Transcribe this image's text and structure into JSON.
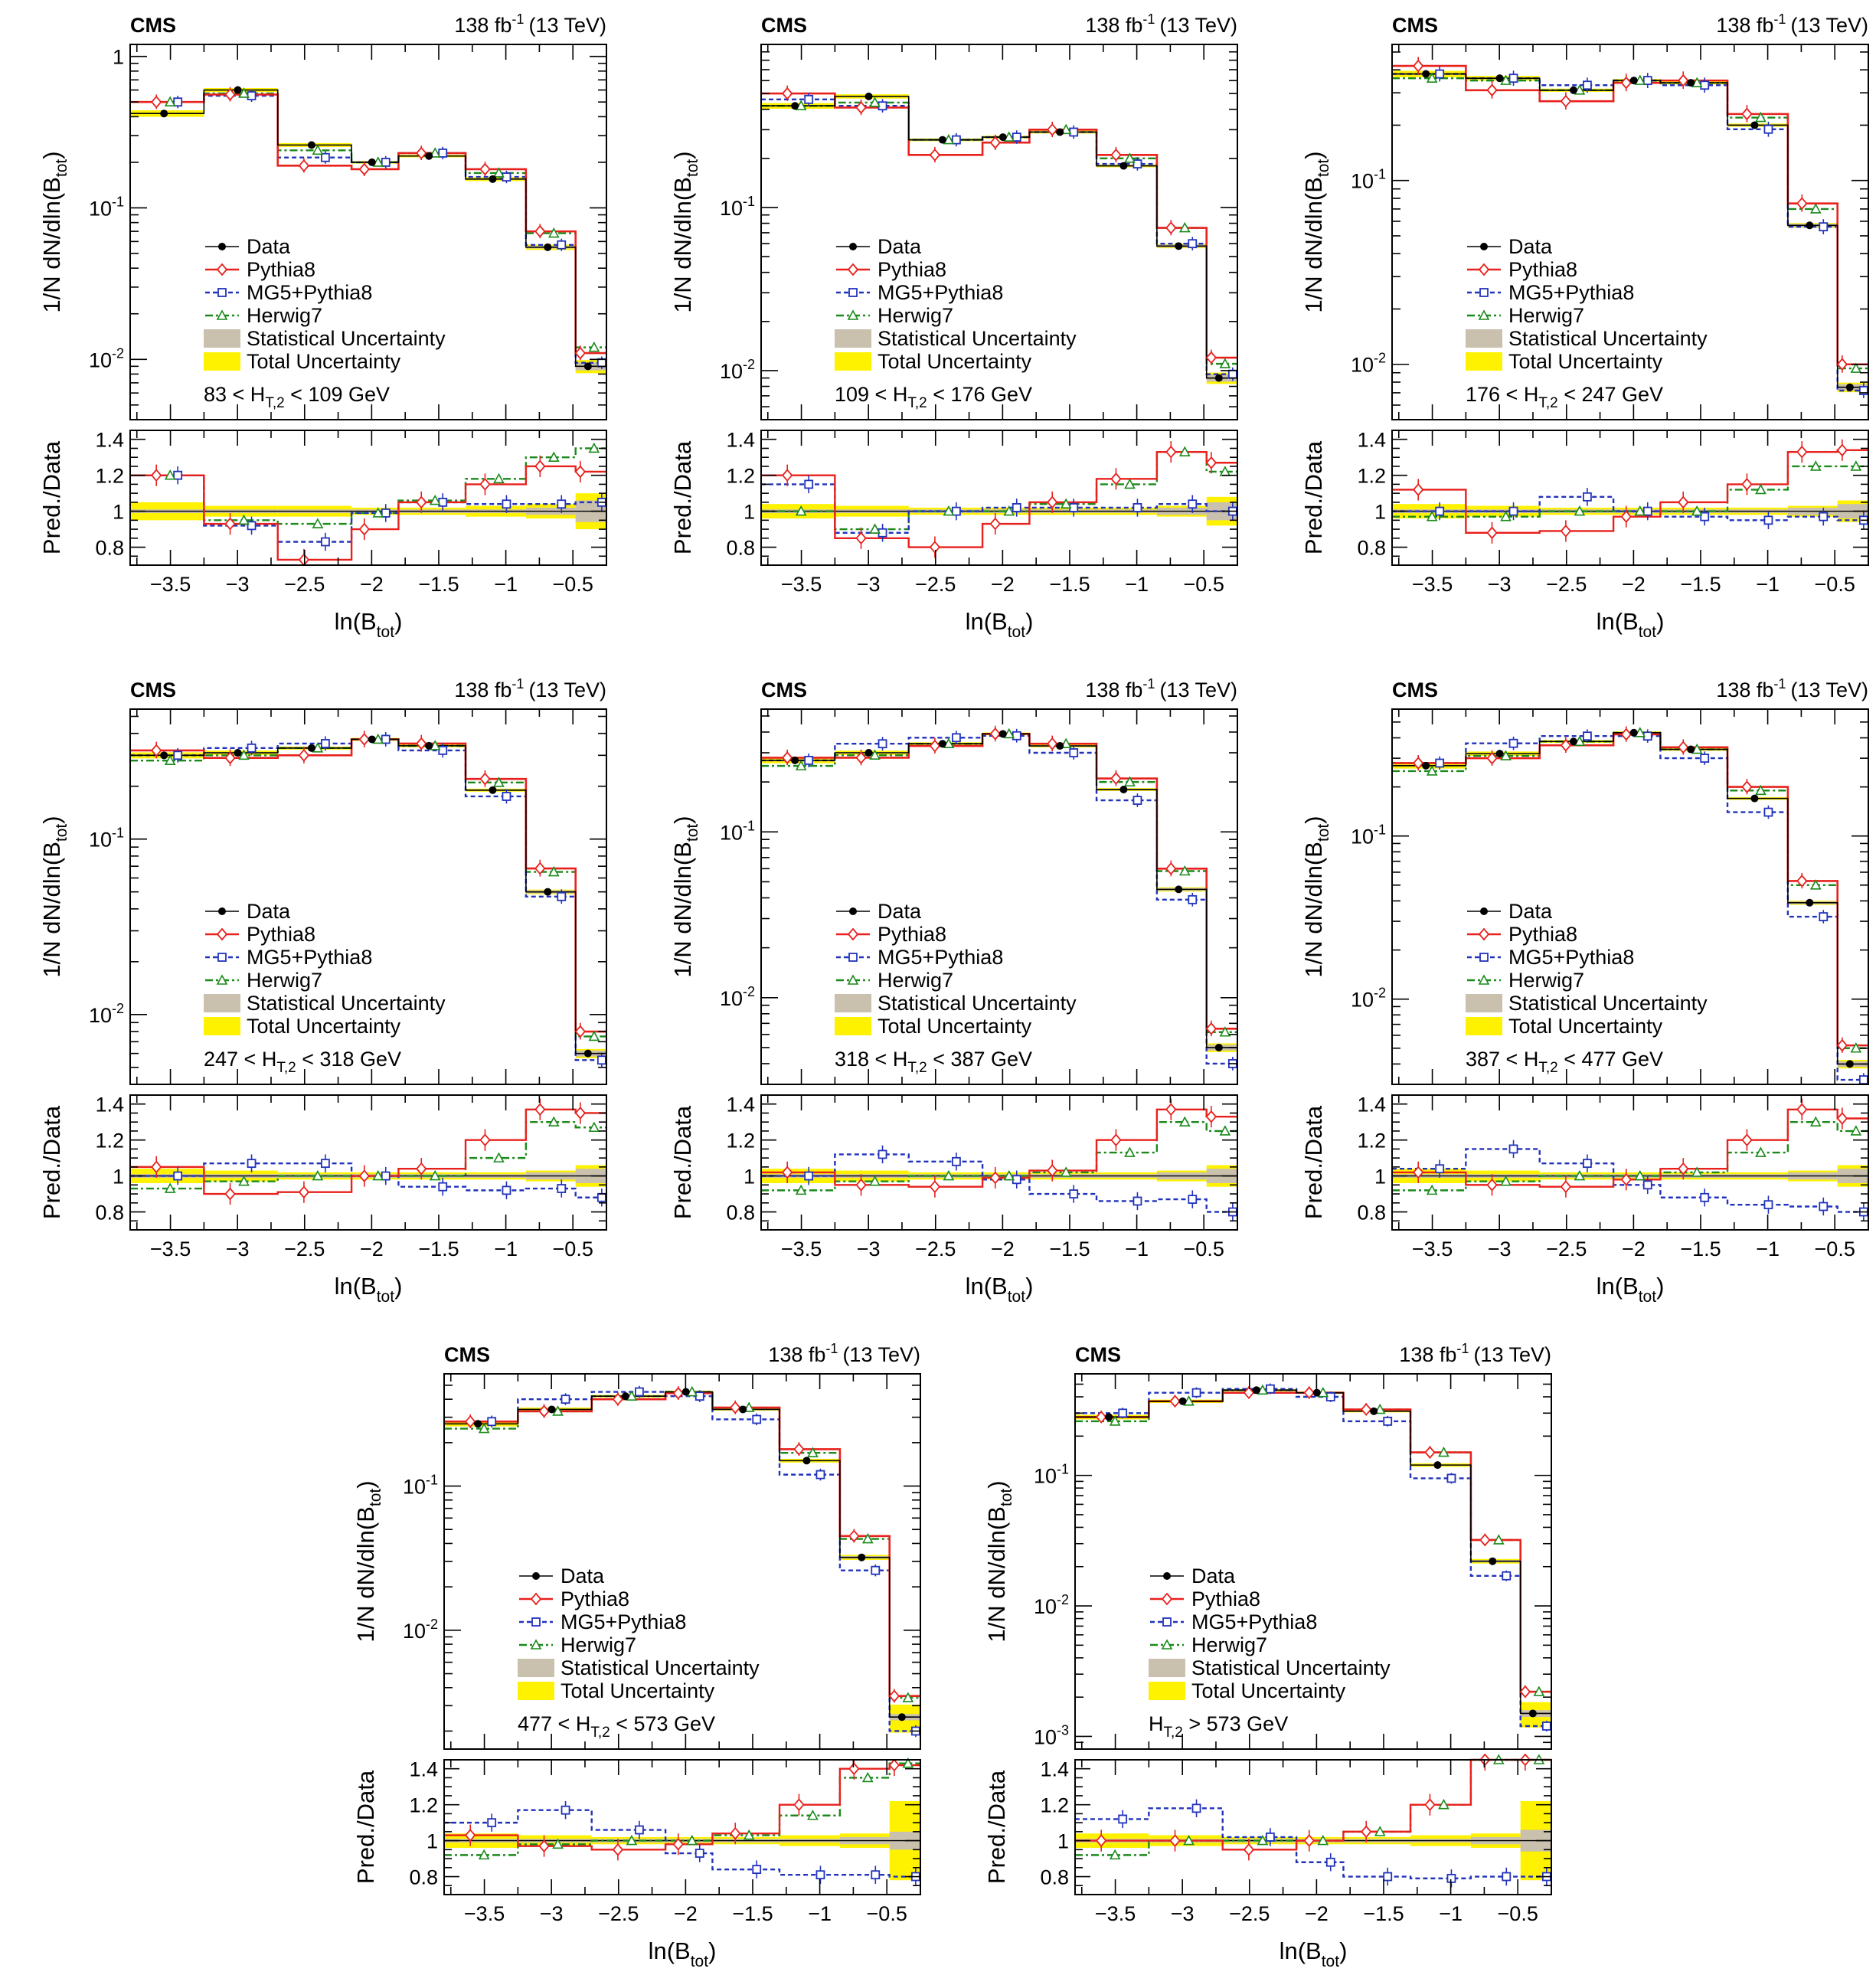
{
  "header": {
    "experiment": "CMS",
    "lumi_value": "138 fb",
    "lumi_exponent": "-1",
    "energy": "(13 TeV)"
  },
  "axes": {
    "xlabel_main": "ln(B",
    "xlabel_sub": "tot",
    "xlabel_close": ")",
    "ylabel_main": "1/N dN/dln(B",
    "ylabel_sub": "tot",
    "ylabel_close": ")",
    "ratio_ylabel": "Pred./Data",
    "x_ticks": [
      "−3.5",
      "−3",
      "−2.5",
      "−2",
      "−1.5",
      "−1",
      "−0.5"
    ],
    "ratio_ticks": [
      "1.4",
      "1.2",
      "1",
      "0.8"
    ]
  },
  "legend": {
    "entries": [
      "Data",
      "Pythia8",
      "MG5+Pythia8",
      "Herwig7",
      "Statistical Uncertainty",
      "Total Uncertainty"
    ]
  },
  "colors": {
    "data": "#000000",
    "pythia8": "#e8211d",
    "mg5": "#2233bb",
    "herwig7": "#1a8a1a",
    "stat_band": "#c9c0ad",
    "total_band": "#fff200"
  },
  "chart_data": {
    "type": "line",
    "bin_edges": [
      -3.8,
      -3.25,
      -2.7,
      -2.15,
      -1.8,
      -1.3,
      -0.85,
      -0.48,
      -0.25
    ],
    "xlim": [
      -3.8,
      -0.25
    ],
    "ratio_ylim": [
      0.7,
      1.45
    ],
    "panels": [
      {
        "label_pre": "83 < H",
        "label_sub": "T,2",
        "label_post": " < 109 GeV",
        "ylim": [
          0.004,
          1.2
        ],
        "decades": [
          {
            "v": 1,
            "t": "1"
          },
          {
            "v": 0.1,
            "t": "10",
            "e": "-1"
          },
          {
            "v": 0.01,
            "t": "10",
            "e": "-2"
          }
        ],
        "data": [
          0.42,
          0.6,
          0.26,
          0.2,
          0.22,
          0.155,
          0.055,
          0.009
        ],
        "pythia8": [
          0.5,
          0.56,
          0.19,
          0.18,
          0.23,
          0.18,
          0.07,
          0.011
        ],
        "mg5": [
          0.5,
          0.55,
          0.215,
          0.2,
          0.23,
          0.16,
          0.057,
          0.0095
        ],
        "herwig7": [
          0.5,
          0.57,
          0.24,
          0.2,
          0.23,
          0.17,
          0.068,
          0.012
        ],
        "stat": [
          0.01,
          0.01,
          0.01,
          0.01,
          0.01,
          0.01,
          0.02,
          0.06
        ],
        "total": [
          0.05,
          0.03,
          0.03,
          0.02,
          0.02,
          0.03,
          0.04,
          0.1
        ],
        "r_pythia8": [
          1.2,
          0.93,
          0.73,
          0.9,
          1.05,
          1.15,
          1.25,
          1.22
        ],
        "r_mg5": [
          1.2,
          0.92,
          0.83,
          0.99,
          1.05,
          1.04,
          1.04,
          1.05
        ],
        "r_herwig7": [
          1.2,
          0.95,
          0.93,
          0.99,
          1.06,
          1.18,
          1.3,
          1.35
        ]
      },
      {
        "label_pre": "109 < H",
        "label_sub": "T,2",
        "label_post": " < 176 GeV",
        "ylim": [
          0.005,
          1.0
        ],
        "decades": [
          {
            "v": 0.1,
            "t": "10",
            "e": "-1"
          },
          {
            "v": 0.01,
            "t": "10",
            "e": "-2"
          }
        ],
        "data": [
          0.42,
          0.48,
          0.26,
          0.27,
          0.29,
          0.18,
          0.058,
          0.009
        ],
        "pythia8": [
          0.5,
          0.41,
          0.21,
          0.25,
          0.3,
          0.21,
          0.075,
          0.012
        ],
        "mg5": [
          0.46,
          0.42,
          0.26,
          0.27,
          0.29,
          0.185,
          0.06,
          0.0095
        ],
        "herwig7": [
          0.42,
          0.44,
          0.26,
          0.27,
          0.3,
          0.2,
          0.075,
          0.011
        ],
        "stat": [
          0.01,
          0.01,
          0.01,
          0.01,
          0.01,
          0.01,
          0.02,
          0.05
        ],
        "total": [
          0.04,
          0.03,
          0.02,
          0.02,
          0.02,
          0.02,
          0.03,
          0.08
        ],
        "r_pythia8": [
          1.2,
          0.85,
          0.8,
          0.93,
          1.05,
          1.18,
          1.33,
          1.27
        ],
        "r_mg5": [
          1.15,
          0.88,
          1.0,
          1.02,
          1.02,
          1.02,
          1.04,
          1.0
        ],
        "r_herwig7": [
          1.0,
          0.9,
          1.0,
          1.0,
          1.04,
          1.15,
          1.33,
          1.22
        ]
      },
      {
        "label_pre": "176 < H",
        "label_sub": "T,2",
        "label_post": " < 247 GeV",
        "ylim": [
          0.005,
          0.55
        ],
        "decades": [
          {
            "v": 0.1,
            "t": "10",
            "e": "-1"
          },
          {
            "v": 0.01,
            "t": "10",
            "e": "-2"
          }
        ],
        "data": [
          0.38,
          0.36,
          0.31,
          0.35,
          0.34,
          0.2,
          0.057,
          0.0075
        ],
        "pythia8": [
          0.42,
          0.31,
          0.27,
          0.34,
          0.35,
          0.23,
          0.075,
          0.01
        ],
        "mg5": [
          0.38,
          0.36,
          0.33,
          0.35,
          0.33,
          0.19,
          0.056,
          0.0072
        ],
        "herwig7": [
          0.36,
          0.35,
          0.31,
          0.35,
          0.34,
          0.22,
          0.07,
          0.0095
        ],
        "stat": [
          0.01,
          0.01,
          0.01,
          0.01,
          0.01,
          0.01,
          0.02,
          0.04
        ],
        "total": [
          0.04,
          0.03,
          0.02,
          0.02,
          0.02,
          0.02,
          0.03,
          0.06
        ],
        "r_pythia8": [
          1.12,
          0.88,
          0.89,
          0.97,
          1.05,
          1.15,
          1.33,
          1.34
        ],
        "r_mg5": [
          1.0,
          1.0,
          1.08,
          1.0,
          0.97,
          0.95,
          0.97,
          0.95
        ],
        "r_herwig7": [
          0.97,
          0.97,
          1.0,
          1.0,
          1.0,
          1.12,
          1.25,
          1.25
        ]
      },
      {
        "label_pre": "247 < H",
        "label_sub": "T,2",
        "label_post": " < 318 GeV",
        "ylim": [
          0.004,
          0.55
        ],
        "decades": [
          {
            "v": 0.1,
            "t": "10",
            "e": "-1"
          },
          {
            "v": 0.01,
            "t": "10",
            "e": "-2"
          }
        ],
        "data": [
          0.3,
          0.31,
          0.33,
          0.37,
          0.34,
          0.19,
          0.05,
          0.006
        ],
        "pythia8": [
          0.32,
          0.29,
          0.3,
          0.37,
          0.35,
          0.22,
          0.068,
          0.008
        ],
        "mg5": [
          0.3,
          0.33,
          0.35,
          0.37,
          0.32,
          0.175,
          0.047,
          0.0055
        ],
        "herwig7": [
          0.28,
          0.3,
          0.33,
          0.37,
          0.34,
          0.21,
          0.065,
          0.0075
        ],
        "stat": [
          0.01,
          0.01,
          0.01,
          0.01,
          0.01,
          0.01,
          0.02,
          0.04
        ],
        "total": [
          0.04,
          0.03,
          0.02,
          0.02,
          0.02,
          0.02,
          0.03,
          0.06
        ],
        "r_pythia8": [
          1.05,
          0.9,
          0.91,
          1.0,
          1.04,
          1.2,
          1.37,
          1.35
        ],
        "r_mg5": [
          1.0,
          1.07,
          1.07,
          1.0,
          0.94,
          0.92,
          0.93,
          0.88
        ],
        "r_herwig7": [
          0.93,
          0.97,
          1.0,
          1.0,
          1.0,
          1.1,
          1.3,
          1.27
        ]
      },
      {
        "label_pre": "318 < H",
        "label_sub": "T,2",
        "label_post": " < 387 GeV",
        "ylim": [
          0.003,
          0.55
        ],
        "decades": [
          {
            "v": 0.1,
            "t": "10",
            "e": "-1"
          },
          {
            "v": 0.01,
            "t": "10",
            "e": "-2"
          }
        ],
        "data": [
          0.27,
          0.3,
          0.34,
          0.39,
          0.33,
          0.18,
          0.045,
          0.005
        ],
        "pythia8": [
          0.28,
          0.28,
          0.33,
          0.39,
          0.34,
          0.21,
          0.06,
          0.0065
        ],
        "mg5": [
          0.27,
          0.34,
          0.37,
          0.38,
          0.3,
          0.155,
          0.039,
          0.004
        ],
        "herwig7": [
          0.25,
          0.29,
          0.34,
          0.39,
          0.34,
          0.2,
          0.058,
          0.0062
        ],
        "stat": [
          0.01,
          0.01,
          0.01,
          0.01,
          0.01,
          0.01,
          0.02,
          0.04
        ],
        "total": [
          0.04,
          0.03,
          0.02,
          0.02,
          0.02,
          0.02,
          0.03,
          0.06
        ],
        "r_pythia8": [
          1.02,
          0.95,
          0.94,
          0.99,
          1.03,
          1.2,
          1.37,
          1.33
        ],
        "r_mg5": [
          1.0,
          1.12,
          1.08,
          0.98,
          0.9,
          0.86,
          0.87,
          0.8
        ],
        "r_herwig7": [
          0.92,
          0.97,
          1.0,
          1.0,
          1.02,
          1.13,
          1.3,
          1.25
        ]
      },
      {
        "label_pre": "387 < H",
        "label_sub": "T,2",
        "label_post": " < 477 GeV",
        "ylim": [
          0.003,
          0.6
        ],
        "decades": [
          {
            "v": 0.1,
            "t": "10",
            "e": "-1"
          },
          {
            "v": 0.01,
            "t": "10",
            "e": "-2"
          }
        ],
        "data": [
          0.27,
          0.32,
          0.38,
          0.43,
          0.34,
          0.17,
          0.039,
          0.004
        ],
        "pythia8": [
          0.28,
          0.3,
          0.36,
          0.42,
          0.35,
          0.2,
          0.053,
          0.0052
        ],
        "mg5": [
          0.28,
          0.37,
          0.41,
          0.41,
          0.3,
          0.14,
          0.032,
          0.0032
        ],
        "herwig7": [
          0.25,
          0.31,
          0.38,
          0.43,
          0.34,
          0.19,
          0.05,
          0.005
        ],
        "stat": [
          0.01,
          0.01,
          0.01,
          0.01,
          0.01,
          0.01,
          0.02,
          0.04
        ],
        "total": [
          0.04,
          0.03,
          0.02,
          0.02,
          0.02,
          0.02,
          0.03,
          0.06
        ],
        "r_pythia8": [
          1.02,
          0.95,
          0.94,
          0.98,
          1.04,
          1.2,
          1.37,
          1.32
        ],
        "r_mg5": [
          1.04,
          1.15,
          1.07,
          0.95,
          0.88,
          0.84,
          0.83,
          0.8
        ],
        "r_herwig7": [
          0.92,
          0.97,
          1.0,
          1.0,
          1.02,
          1.13,
          1.3,
          1.25
        ]
      },
      {
        "label_pre": "477 < H",
        "label_sub": "T,2",
        "label_post": " < 573 GeV",
        "ylim": [
          0.0015,
          0.6
        ],
        "decades": [
          {
            "v": 0.1,
            "t": "10",
            "e": "-1"
          },
          {
            "v": 0.01,
            "t": "10",
            "e": "-2"
          }
        ],
        "data": [
          0.27,
          0.34,
          0.42,
          0.45,
          0.34,
          0.15,
          0.032,
          0.0025
        ],
        "pythia8": [
          0.28,
          0.33,
          0.4,
          0.44,
          0.35,
          0.18,
          0.045,
          0.0035
        ],
        "mg5": [
          0.28,
          0.4,
          0.45,
          0.42,
          0.29,
          0.12,
          0.026,
          0.002
        ],
        "herwig7": [
          0.25,
          0.33,
          0.42,
          0.45,
          0.35,
          0.17,
          0.043,
          0.0034
        ],
        "stat": [
          0.01,
          0.01,
          0.01,
          0.01,
          0.01,
          0.01,
          0.02,
          0.05
        ],
        "total": [
          0.04,
          0.03,
          0.02,
          0.02,
          0.02,
          0.03,
          0.04,
          0.22
        ],
        "r_pythia8": [
          1.03,
          0.97,
          0.95,
          0.98,
          1.04,
          1.2,
          1.4,
          1.42
        ],
        "r_mg5": [
          1.1,
          1.17,
          1.06,
          0.93,
          0.84,
          0.81,
          0.81,
          0.8
        ],
        "r_herwig7": [
          0.92,
          0.98,
          1.0,
          1.0,
          1.03,
          1.14,
          1.35,
          1.43
        ]
      },
      {
        "label_pre": "H",
        "label_sub": "T,2",
        "label_post": " > 573 GeV",
        "ylim": [
          0.0008,
          0.6
        ],
        "decades": [
          {
            "v": 0.1,
            "t": "10",
            "e": "-1"
          },
          {
            "v": 0.01,
            "t": "10",
            "e": "-2"
          },
          {
            "v": 0.001,
            "t": "10",
            "e": "-3"
          }
        ],
        "data": [
          0.28,
          0.37,
          0.45,
          0.43,
          0.31,
          0.12,
          0.022,
          0.0015
        ],
        "pythia8": [
          0.28,
          0.37,
          0.43,
          0.43,
          0.32,
          0.15,
          0.032,
          0.0022
        ],
        "mg5": [
          0.3,
          0.43,
          0.46,
          0.4,
          0.26,
          0.095,
          0.017,
          0.0012
        ],
        "herwig7": [
          0.26,
          0.37,
          0.45,
          0.43,
          0.32,
          0.15,
          0.032,
          0.0022
        ],
        "stat": [
          0.01,
          0.01,
          0.01,
          0.01,
          0.01,
          0.01,
          0.02,
          0.06
        ],
        "total": [
          0.04,
          0.03,
          0.02,
          0.02,
          0.02,
          0.03,
          0.04,
          0.22
        ],
        "r_pythia8": [
          1.0,
          1.0,
          0.95,
          1.0,
          1.05,
          1.2,
          1.45,
          1.45
        ],
        "r_mg5": [
          1.12,
          1.18,
          1.02,
          0.88,
          0.8,
          0.79,
          0.8,
          0.8
        ],
        "r_herwig7": [
          0.92,
          1.0,
          1.0,
          1.0,
          1.05,
          1.2,
          1.45,
          1.45
        ]
      }
    ]
  }
}
